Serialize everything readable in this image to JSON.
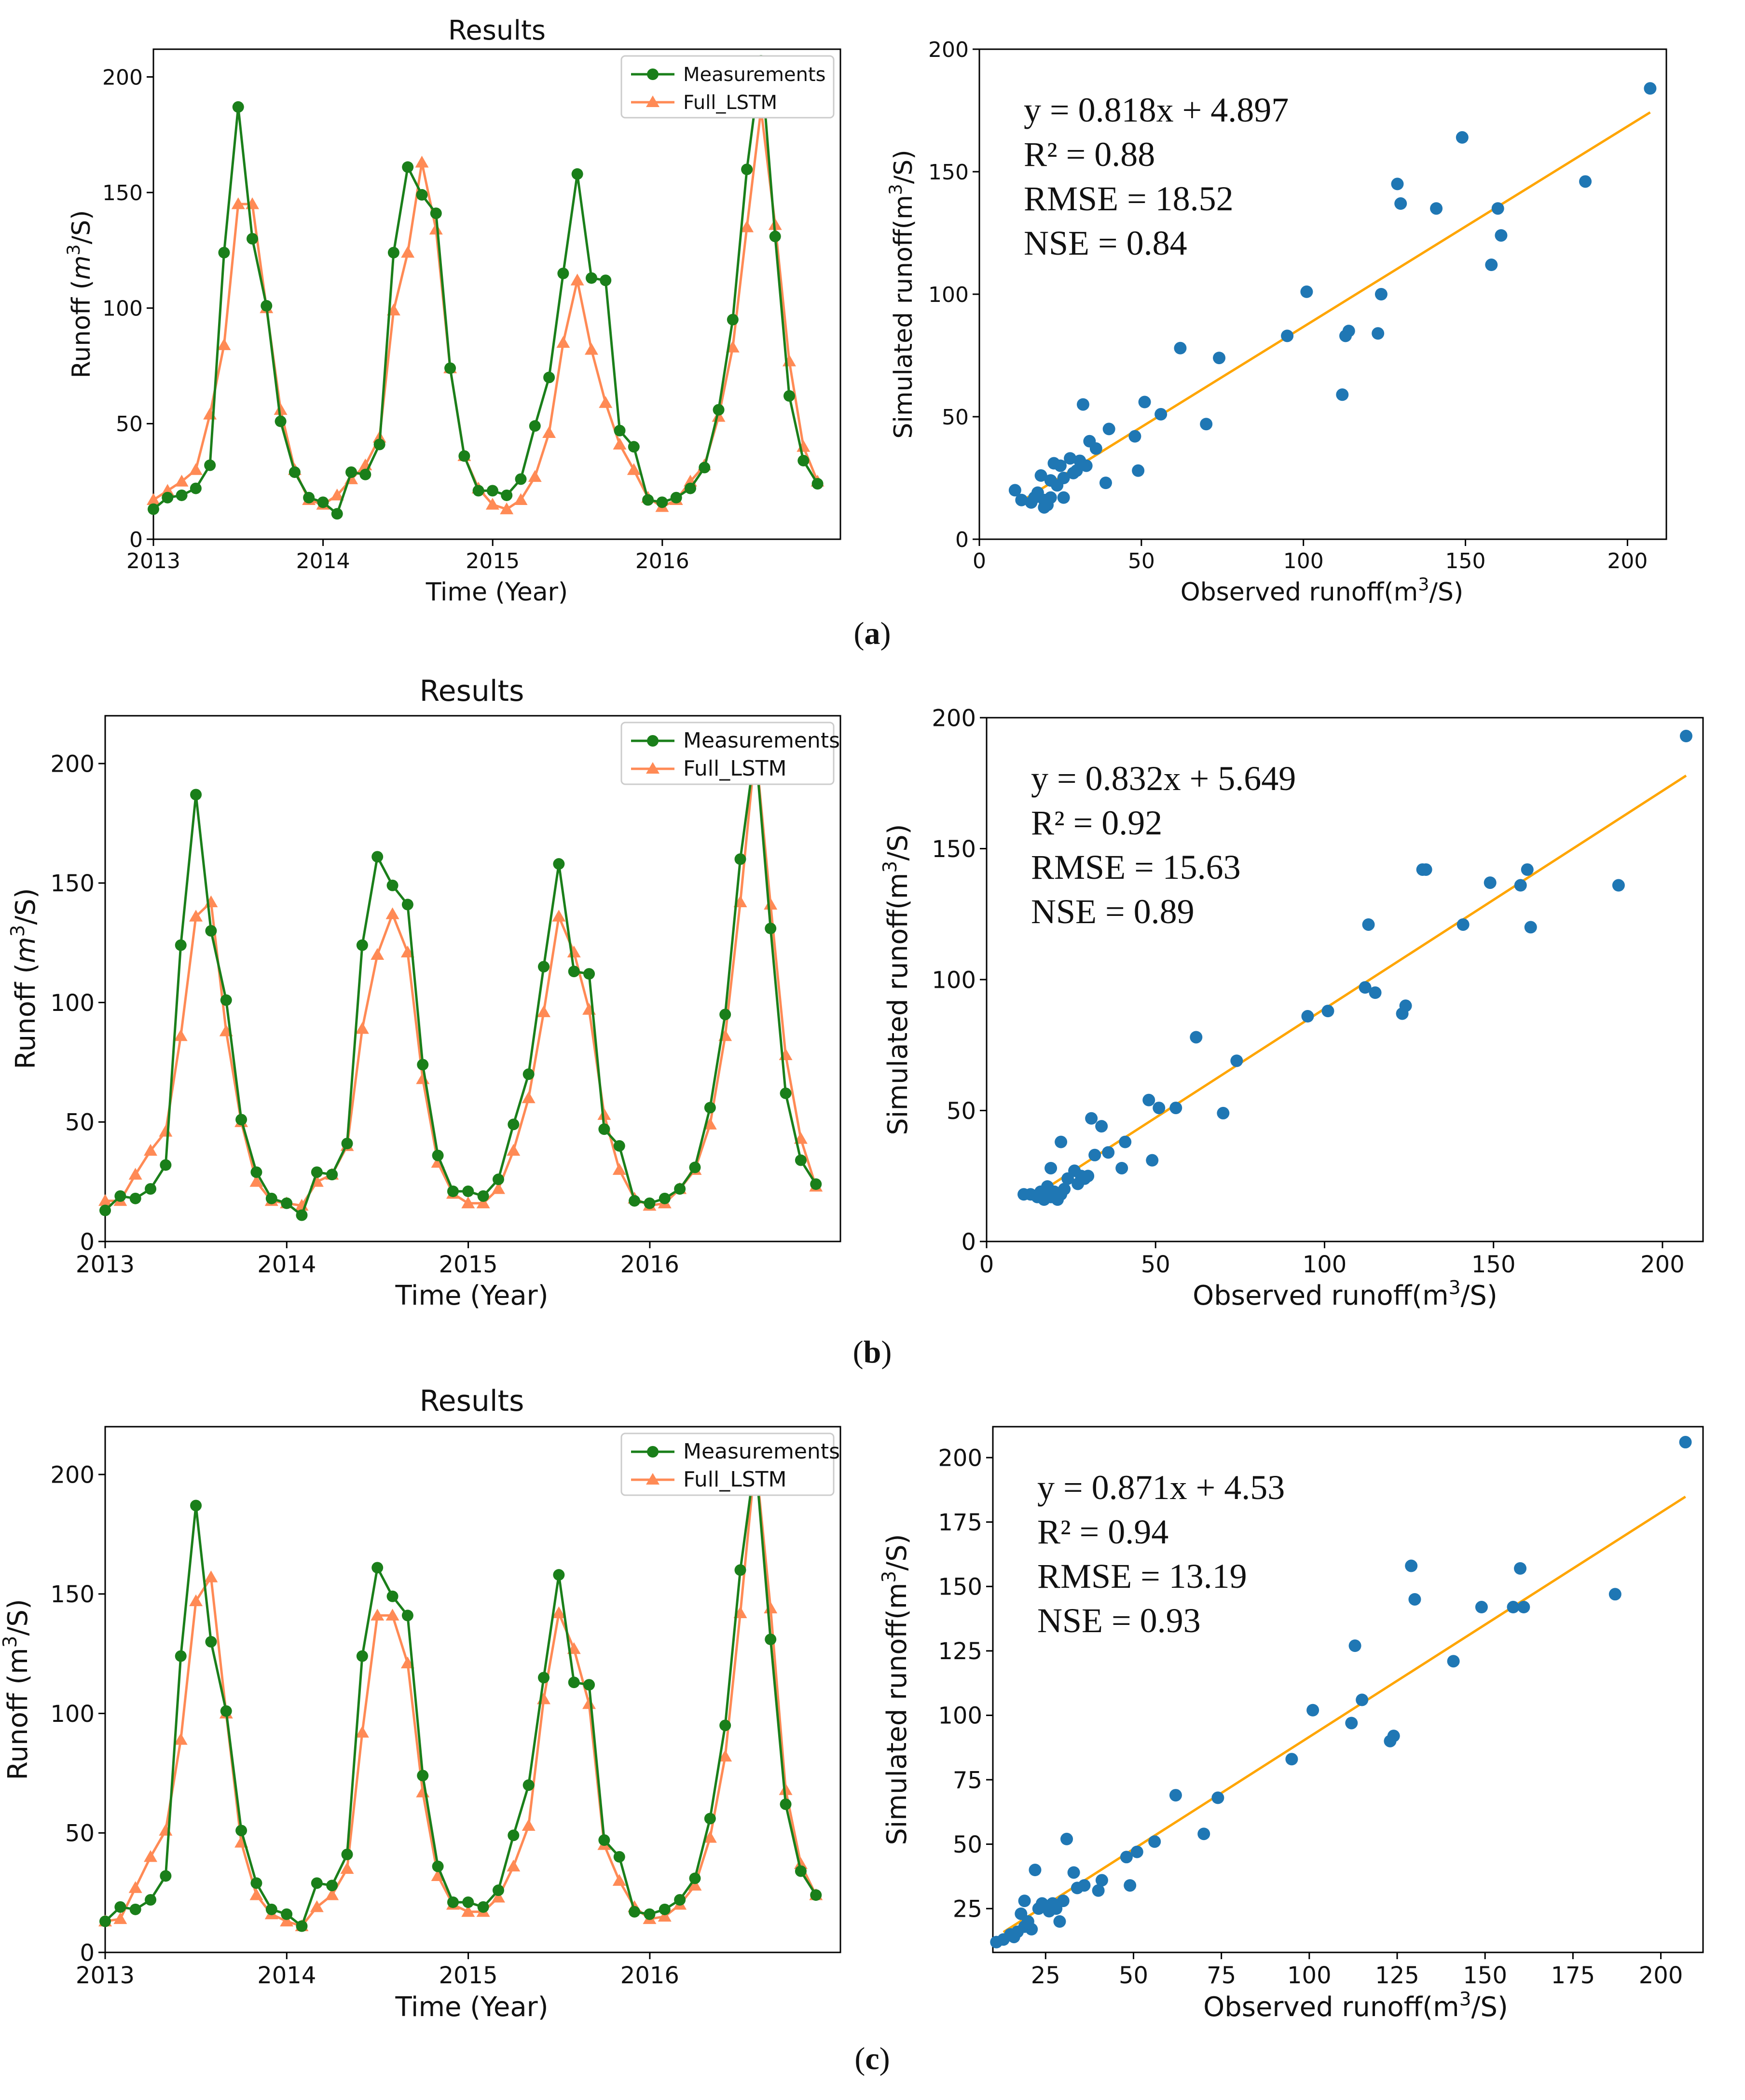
{
  "colors": {
    "measured": "#1a7f1a",
    "simulated": "#ff8a55",
    "scatter": "#1f77b4",
    "fitline": "#ffa500"
  },
  "panels": [
    {
      "caption": "(a)",
      "timeseries": {
        "title": "Results",
        "xlabel": "Time (Year)",
        "ylabel": "Runoff (m³/S)",
        "ylabel_parts": {
          "pre": "Runoff (",
          "unit": "m",
          "sup": "3",
          "post": "/S)",
          "italic_unit": true
        },
        "legend": [
          "Measurements",
          "Full_LSTM"
        ]
      },
      "scatter": {
        "xlabel_parts": {
          "pre": "Observed runoff(m",
          "sup": "3",
          "post": "/S)"
        },
        "ylabel_parts": {
          "pre": "Simulated runoff(m",
          "sup": "3",
          "post": "/S)"
        },
        "annotations": [
          "y = 0.818x + 4.897",
          "R² = 0.88",
          "RMSE = 18.52",
          "NSE = 0.84"
        ]
      }
    },
    {
      "caption": "(b)",
      "timeseries": {
        "title": "Results",
        "xlabel": "Time (Year)",
        "ylabel": "Runoff (m³/S)",
        "ylabel_parts": {
          "pre": "Runoff (",
          "unit": "m",
          "sup": "3",
          "post": "/S)",
          "italic_unit": true
        },
        "legend": [
          "Measurements",
          "Full_LSTM"
        ]
      },
      "scatter": {
        "xlabel_parts": {
          "pre": "Observed runoff(m",
          "sup": "3",
          "post": "/S)"
        },
        "ylabel_parts": {
          "pre": "Simulated runoff(m",
          "sup": "3",
          "post": "/S)"
        },
        "annotations": [
          "y = 0.832x + 5.649",
          "R² = 0.92",
          "RMSE = 15.63",
          "NSE = 0.89"
        ]
      }
    },
    {
      "caption": "(c)",
      "timeseries": {
        "title": "Results",
        "xlabel": "Time (Year)",
        "ylabel": "Runoff (m³/S)",
        "ylabel_parts": {
          "pre": "Runoff (",
          "unit": "m",
          "sup": "3",
          "post": "/S)",
          "italic_unit": false
        },
        "legend": [
          "Measurements",
          "Full_LSTM"
        ]
      },
      "scatter": {
        "xlabel_parts": {
          "pre": "Observed runoff(m",
          "sup": "3",
          "post": "/S)"
        },
        "ylabel_parts": {
          "pre": "Simulated runoff(m",
          "sup": "3",
          "post": "/S)"
        },
        "annotations": [
          "y = 0.871x + 4.53",
          "R² = 0.94",
          "RMSE = 13.19",
          "NSE = 0.93"
        ]
      }
    }
  ],
  "chart_data": [
    {
      "id": "a-timeseries",
      "type": "line",
      "title": "Results",
      "xlabel": "Time (Year)",
      "ylabel": "Runoff (m³/S)",
      "xlim": [
        2013,
        2017.05
      ],
      "ylim": [
        0,
        212
      ],
      "xticks": [
        2013,
        2014,
        2015,
        2016
      ],
      "yticks": [
        0,
        50,
        100,
        150,
        200
      ],
      "legend_position": "top-right",
      "x_start": 2013,
      "x_step": 0.0833,
      "series": [
        {
          "name": "Measurements",
          "marker": "circle",
          "values": [
            13,
            18,
            19,
            22,
            32,
            124,
            187,
            130,
            101,
            51,
            29,
            18,
            16,
            11,
            29,
            28,
            41,
            124,
            161,
            149,
            141,
            74,
            36,
            21,
            21,
            19,
            26,
            49,
            70,
            115,
            158,
            113,
            112,
            47,
            40,
            17,
            16,
            18,
            22,
            31,
            56,
            95,
            160,
            207,
            131,
            62,
            34,
            24
          ]
        },
        {
          "name": "Full_LSTM",
          "marker": "triangle",
          "values": [
            17,
            21,
            25,
            30,
            54,
            84,
            145,
            145,
            100,
            56,
            30,
            17,
            15,
            19,
            26,
            32,
            44,
            99,
            124,
            163,
            134,
            74,
            36,
            22,
            15,
            13,
            17,
            27,
            46,
            85,
            112,
            82,
            59,
            41,
            30,
            18,
            14,
            17,
            25,
            32,
            53,
            83,
            135,
            186,
            136,
            77,
            40,
            25
          ]
        }
      ]
    },
    {
      "id": "a-scatter",
      "type": "scatter",
      "xlabel": "Observed runoff(m³/S)",
      "ylabel": "Simulated runoff(m³/S)",
      "xlim": [
        0,
        212
      ],
      "ylim": [
        0,
        200
      ],
      "xticks": [
        0,
        50,
        100,
        150,
        200
      ],
      "yticks": [
        0,
        50,
        100,
        150,
        200
      ],
      "fit": {
        "slope": 0.818,
        "intercept": 4.897,
        "x_range": [
          13,
          207
        ]
      },
      "annotations": [
        "y = 0.818x + 4.897",
        "R² = 0.88",
        "RMSE = 18.52",
        "NSE = 0.84"
      ],
      "points": [
        [
          11,
          20
        ],
        [
          13,
          16
        ],
        [
          16,
          15
        ],
        [
          17,
          17
        ],
        [
          18,
          19
        ],
        [
          19,
          26
        ],
        [
          20,
          13
        ],
        [
          20,
          16
        ],
        [
          21,
          14
        ],
        [
          22,
          24
        ],
        [
          22,
          17
        ],
        [
          23,
          31
        ],
        [
          24,
          22
        ],
        [
          25,
          30
        ],
        [
          26,
          25
        ],
        [
          26,
          17
        ],
        [
          28,
          33
        ],
        [
          29,
          27
        ],
        [
          30,
          28
        ],
        [
          31,
          32
        ],
        [
          32,
          55
        ],
        [
          33,
          30
        ],
        [
          34,
          40
        ],
        [
          36,
          37
        ],
        [
          39,
          23
        ],
        [
          40,
          45
        ],
        [
          48,
          42
        ],
        [
          49,
          28
        ],
        [
          51,
          56
        ],
        [
          56,
          51
        ],
        [
          62,
          78
        ],
        [
          70,
          47
        ],
        [
          74,
          74
        ],
        [
          95,
          83
        ],
        [
          101,
          101
        ],
        [
          112,
          59
        ],
        [
          113,
          83
        ],
        [
          114,
          85
        ],
        [
          123,
          84
        ],
        [
          124,
          100
        ],
        [
          129,
          145
        ],
        [
          130,
          137
        ],
        [
          141,
          135
        ],
        [
          149,
          164
        ],
        [
          158,
          112
        ],
        [
          160,
          135
        ],
        [
          161,
          124
        ],
        [
          187,
          146
        ],
        [
          207,
          184
        ]
      ]
    },
    {
      "id": "b-timeseries",
      "type": "line",
      "title": "Results",
      "xlabel": "Time (Year)",
      "ylabel": "Runoff (m³/S)",
      "xlim": [
        2013,
        2017.05
      ],
      "ylim": [
        0,
        220
      ],
      "xticks": [
        2013,
        2014,
        2015,
        2016
      ],
      "yticks": [
        0,
        50,
        100,
        150,
        200
      ],
      "legend_position": "top-right",
      "x_start": 2013,
      "x_step": 0.0833,
      "series": [
        {
          "name": "Measurements",
          "marker": "circle",
          "values": [
            13,
            19,
            18,
            22,
            32,
            124,
            187,
            130,
            101,
            51,
            29,
            18,
            16,
            11,
            29,
            28,
            41,
            124,
            161,
            149,
            141,
            74,
            36,
            21,
            21,
            19,
            26,
            49,
            70,
            115,
            158,
            113,
            112,
            47,
            40,
            17,
            16,
            18,
            22,
            31,
            56,
            95,
            160,
            207,
            131,
            62,
            34,
            24
          ]
        },
        {
          "name": "Full_LSTM",
          "marker": "triangle",
          "values": [
            17,
            17,
            28,
            38,
            46,
            86,
            136,
            142,
            88,
            50,
            25,
            17,
            16,
            15,
            25,
            28,
            40,
            89,
            120,
            137,
            121,
            68,
            33,
            20,
            16,
            16,
            22,
            38,
            60,
            96,
            136,
            121,
            97,
            53,
            30,
            18,
            15,
            16,
            22,
            30,
            49,
            86,
            142,
            207,
            141,
            78,
            43,
            23
          ]
        }
      ]
    },
    {
      "id": "b-scatter",
      "type": "scatter",
      "xlabel": "Observed runoff(m³/S)",
      "ylabel": "Simulated runoff(m³/S)",
      "xlim": [
        0,
        212
      ],
      "ylim": [
        0,
        200
      ],
      "xticks": [
        0,
        50,
        100,
        150,
        200
      ],
      "yticks": [
        0,
        50,
        100,
        150,
        200
      ],
      "fit": {
        "slope": 0.832,
        "intercept": 5.649,
        "x_range": [
          13,
          207
        ]
      },
      "annotations": [
        "y = 0.832x + 5.649",
        "R² = 0.92",
        "RMSE = 15.63",
        "NSE = 0.89"
      ],
      "points": [
        [
          11,
          18
        ],
        [
          13,
          18
        ],
        [
          15,
          17
        ],
        [
          16,
          19
        ],
        [
          17,
          16
        ],
        [
          18,
          21
        ],
        [
          19,
          17
        ],
        [
          19,
          28
        ],
        [
          20,
          19
        ],
        [
          21,
          16
        ],
        [
          22,
          18
        ],
        [
          22,
          38
        ],
        [
          23,
          20
        ],
        [
          24,
          24
        ],
        [
          26,
          27
        ],
        [
          27,
          22
        ],
        [
          28,
          25
        ],
        [
          29,
          24
        ],
        [
          30,
          25
        ],
        [
          31,
          47
        ],
        [
          32,
          33
        ],
        [
          34,
          44
        ],
        [
          36,
          34
        ],
        [
          40,
          28
        ],
        [
          41,
          38
        ],
        [
          48,
          54
        ],
        [
          49,
          31
        ],
        [
          51,
          51
        ],
        [
          56,
          51
        ],
        [
          62,
          78
        ],
        [
          70,
          49
        ],
        [
          74,
          69
        ],
        [
          95,
          86
        ],
        [
          101,
          88
        ],
        [
          112,
          97
        ],
        [
          113,
          121
        ],
        [
          115,
          95
        ],
        [
          123,
          87
        ],
        [
          124,
          90
        ],
        [
          129,
          142
        ],
        [
          130,
          142
        ],
        [
          141,
          121
        ],
        [
          149,
          137
        ],
        [
          158,
          136
        ],
        [
          160,
          142
        ],
        [
          161,
          120
        ],
        [
          187,
          136
        ],
        [
          207,
          193
        ]
      ]
    },
    {
      "id": "c-timeseries",
      "type": "line",
      "title": "Results",
      "xlabel": "Time (Year)",
      "ylabel": "Runoff (m³/S)",
      "xlim": [
        2013,
        2017.05
      ],
      "ylim": [
        0,
        220
      ],
      "xticks": [
        2013,
        2014,
        2015,
        2016
      ],
      "yticks": [
        0,
        50,
        100,
        150,
        200
      ],
      "legend_position": "top-right",
      "x_start": 2013,
      "x_step": 0.0833,
      "series": [
        {
          "name": "Measurements",
          "marker": "circle",
          "values": [
            13,
            19,
            18,
            22,
            32,
            124,
            187,
            130,
            101,
            51,
            29,
            18,
            16,
            11,
            29,
            28,
            41,
            124,
            161,
            149,
            141,
            74,
            36,
            21,
            21,
            19,
            26,
            49,
            70,
            115,
            158,
            113,
            112,
            47,
            40,
            17,
            16,
            18,
            22,
            31,
            56,
            95,
            160,
            207,
            131,
            62,
            34,
            24
          ]
        },
        {
          "name": "Full_LSTM",
          "marker": "triangle",
          "values": [
            13,
            14,
            27,
            40,
            51,
            89,
            147,
            157,
            100,
            46,
            24,
            16,
            13,
            11,
            19,
            24,
            35,
            92,
            141,
            141,
            121,
            67,
            32,
            20,
            17,
            17,
            23,
            36,
            53,
            106,
            142,
            127,
            104,
            45,
            30,
            19,
            14,
            15,
            20,
            28,
            48,
            82,
            142,
            207,
            144,
            68,
            37,
            24
          ]
        }
      ]
    },
    {
      "id": "c-scatter",
      "type": "scatter",
      "xlabel": "Observed runoff(m³/S)",
      "ylabel": "Simulated runoff(m³/S)",
      "xlim": [
        10,
        212
      ],
      "ylim": [
        8,
        212
      ],
      "xticks": [
        25,
        50,
        75,
        100,
        125,
        150,
        175,
        200
      ],
      "yticks": [
        25,
        50,
        75,
        100,
        125,
        150,
        175,
        200
      ],
      "fit": {
        "slope": 0.871,
        "intercept": 4.53,
        "x_range": [
          13,
          207
        ]
      },
      "annotations": [
        "y = 0.871x + 4.53",
        "R² = 0.94",
        "RMSE = 13.19",
        "NSE = 0.93"
      ],
      "points": [
        [
          11,
          12
        ],
        [
          13,
          13
        ],
        [
          15,
          15
        ],
        [
          16,
          14
        ],
        [
          17,
          16
        ],
        [
          18,
          23
        ],
        [
          19,
          28
        ],
        [
          19,
          18
        ],
        [
          20,
          20
        ],
        [
          21,
          17
        ],
        [
          22,
          40
        ],
        [
          23,
          25
        ],
        [
          24,
          27
        ],
        [
          26,
          24
        ],
        [
          27,
          27
        ],
        [
          28,
          25
        ],
        [
          29,
          20
        ],
        [
          30,
          28
        ],
        [
          31,
          52
        ],
        [
          33,
          39
        ],
        [
          34,
          33
        ],
        [
          36,
          34
        ],
        [
          40,
          32
        ],
        [
          41,
          36
        ],
        [
          48,
          45
        ],
        [
          49,
          34
        ],
        [
          51,
          47
        ],
        [
          56,
          51
        ],
        [
          62,
          69
        ],
        [
          70,
          54
        ],
        [
          74,
          68
        ],
        [
          95,
          83
        ],
        [
          101,
          102
        ],
        [
          112,
          97
        ],
        [
          113,
          127
        ],
        [
          115,
          106
        ],
        [
          123,
          90
        ],
        [
          124,
          92
        ],
        [
          129,
          158
        ],
        [
          130,
          145
        ],
        [
          141,
          121
        ],
        [
          149,
          142
        ],
        [
          158,
          142
        ],
        [
          160,
          157
        ],
        [
          161,
          142
        ],
        [
          187,
          147
        ],
        [
          207,
          206
        ]
      ]
    }
  ]
}
